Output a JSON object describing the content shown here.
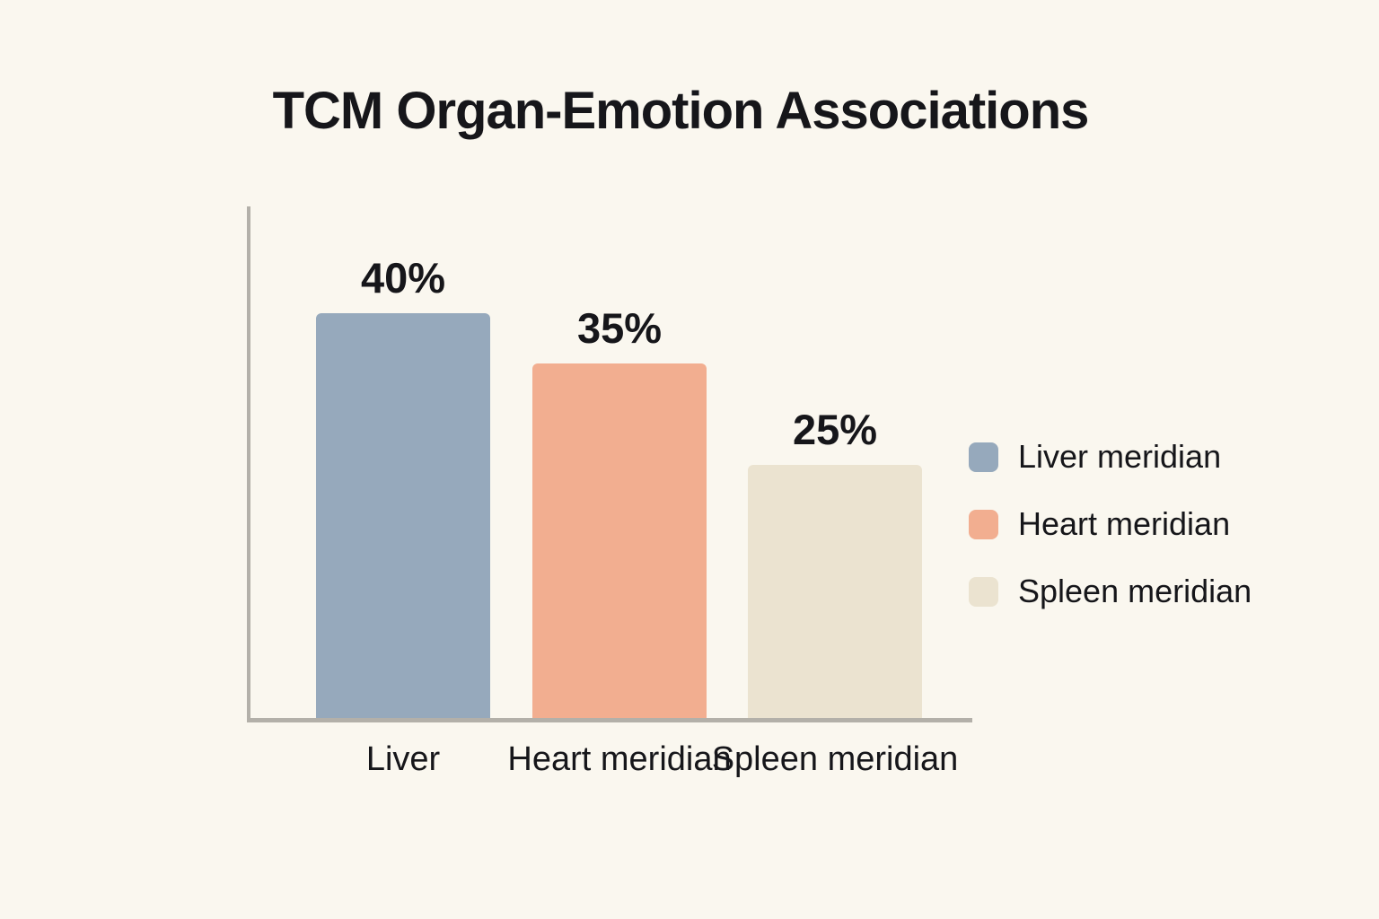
{
  "page": {
    "background_color": "#faf7ef",
    "text_color": "#16161a"
  },
  "chart_data": {
    "type": "bar",
    "title": "TCM Organ-Emotion Associations",
    "categories": [
      "Liver",
      "Heart meridian",
      "Spleen meridian"
    ],
    "values": [
      40,
      35,
      25
    ],
    "value_labels": [
      "40%",
      "35%",
      "25%"
    ],
    "bar_colors": [
      "#96a9bc",
      "#f2ae90",
      "#ebe3d0"
    ],
    "xlabel": "",
    "ylabel": "",
    "ylim": [
      0,
      50
    ],
    "grid": false,
    "axis_color": "#b3b0a9",
    "legend_position": "right",
    "legend": [
      {
        "label": "Liver meridian",
        "color": "#96a9bc"
      },
      {
        "label": "Heart meridian",
        "color": "#f2ae90"
      },
      {
        "label": "Spleen meridian",
        "color": "#ebe3d0"
      }
    ]
  }
}
